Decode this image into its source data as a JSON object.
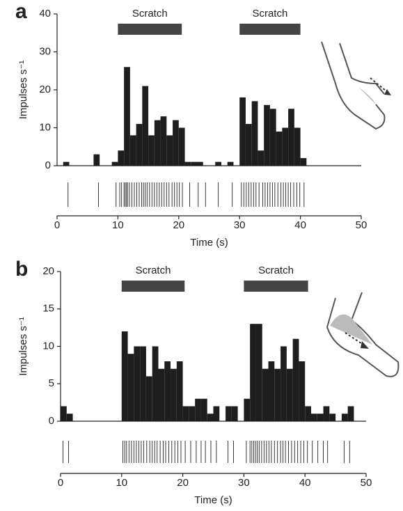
{
  "chart_data": [
    {
      "type": "histogram",
      "panel_label": "a",
      "ylabel": "Impulses s⁻¹",
      "xlabel": "Time (s)",
      "color": "#1e1e1e",
      "bins": [
        0,
        1,
        2,
        3,
        4,
        5,
        6,
        7,
        8,
        9,
        10,
        11,
        12,
        13,
        14,
        15,
        16,
        17,
        18,
        19,
        20,
        21,
        22,
        23,
        24,
        25,
        26,
        27,
        28,
        29,
        30,
        31,
        32,
        33,
        34,
        35,
        36,
        37,
        38,
        39,
        40,
        41
      ],
      "values": [
        0,
        1,
        0,
        0,
        0,
        0,
        3,
        0,
        0,
        1,
        4,
        26,
        8,
        11,
        21,
        8,
        12,
        13,
        8,
        12,
        10,
        1,
        1,
        1,
        0,
        0,
        1,
        0,
        1,
        0,
        18,
        11,
        17,
        4,
        16,
        15,
        9,
        10,
        15,
        10,
        2
      ],
      "xlim": [
        0,
        50
      ],
      "xticks": [
        0,
        10,
        20,
        30,
        40,
        50
      ],
      "ylim": [
        0,
        40
      ],
      "yticks": [
        0,
        10,
        20,
        30,
        40
      ],
      "annotations": [
        {
          "text": "Scratch",
          "x": [
            10,
            20.5
          ]
        },
        {
          "text": "Scratch",
          "x": [
            30,
            40
          ]
        }
      ],
      "spikes": [
        1.8,
        6.8,
        9.7,
        10.3,
        10.6,
        11.0,
        11.2,
        11.4,
        11.6,
        11.9,
        12.3,
        12.7,
        13.1,
        13.5,
        13.9,
        14.2,
        14.5,
        14.8,
        15.2,
        15.6,
        16.0,
        16.4,
        16.8,
        17.2,
        17.6,
        18.0,
        18.4,
        18.9,
        19.3,
        19.7,
        20.1,
        20.6,
        21.8,
        23.2,
        24.4,
        26.5,
        28.8,
        30.3,
        30.7,
        31.1,
        31.5,
        31.9,
        32.3,
        32.7,
        33.2,
        33.8,
        34.2,
        34.6,
        35.0,
        35.4,
        35.8,
        36.3,
        36.8,
        37.2,
        37.6,
        38.0,
        38.4,
        38.9,
        39.4,
        39.9,
        40.6
      ]
    },
    {
      "type": "histogram",
      "panel_label": "b",
      "ylabel": "Impulses s⁻¹",
      "xlabel": "Time (s)",
      "color": "#1e1e1e",
      "bins": [
        0,
        1,
        2,
        3,
        4,
        5,
        6,
        7,
        8,
        9,
        10,
        11,
        12,
        13,
        14,
        15,
        16,
        17,
        18,
        19,
        20,
        21,
        22,
        23,
        24,
        25,
        26,
        27,
        28,
        29,
        30,
        31,
        32,
        33,
        34,
        35,
        36,
        37,
        38,
        39,
        40,
        41,
        42,
        43,
        44,
        45,
        46,
        47,
        48
      ],
      "values": [
        2,
        1,
        0,
        0,
        0,
        0,
        0,
        0,
        0,
        0,
        12,
        9,
        10,
        10,
        6,
        10,
        7,
        8,
        7,
        8,
        2,
        2,
        3,
        3,
        1,
        2,
        0,
        2,
        2,
        0,
        3,
        13,
        13,
        7,
        8,
        7,
        10,
        7,
        11,
        8,
        2,
        1,
        1,
        2,
        1,
        0,
        1,
        2
      ],
      "xlim": [
        0,
        50
      ],
      "xticks": [
        0,
        10,
        20,
        30,
        40,
        50
      ],
      "ylim": [
        0,
        20
      ],
      "yticks": [
        0,
        5,
        10,
        15,
        20
      ],
      "annotations": [
        {
          "text": "Scratch",
          "x": [
            10,
            20.3
          ]
        },
        {
          "text": "Scratch",
          "x": [
            30,
            40.5
          ]
        }
      ],
      "spikes": [
        0.4,
        1.3,
        10.2,
        10.5,
        10.8,
        11.2,
        11.6,
        12.0,
        12.4,
        12.8,
        13.2,
        13.6,
        14.1,
        14.6,
        15.0,
        15.4,
        15.8,
        16.3,
        16.8,
        17.2,
        17.7,
        18.2,
        18.7,
        19.2,
        19.7,
        20.4,
        21.3,
        22.2,
        23.0,
        23.7,
        24.6,
        25.5,
        27.4,
        28.3,
        30.4,
        31.0,
        31.3,
        31.6,
        31.9,
        32.2,
        32.5,
        32.9,
        33.3,
        33.7,
        34.1,
        34.5,
        35.0,
        35.5,
        36.0,
        36.4,
        36.8,
        37.3,
        37.8,
        38.3,
        38.8,
        39.3,
        39.8,
        40.4,
        41.2,
        42.1,
        43.0,
        43.7,
        46.4,
        47.3
      ]
    }
  ]
}
